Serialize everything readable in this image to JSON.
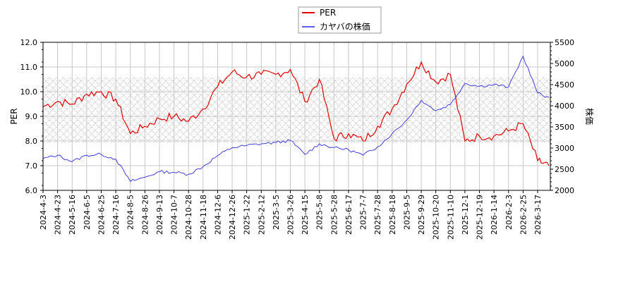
{
  "chart_data": {
    "type": "line",
    "title": "",
    "xlabel": "",
    "ylabel_left": "PER",
    "ylabel_right": "株価",
    "ylim_left": [
      6.0,
      12.0
    ],
    "ylim_right": [
      2000,
      5500
    ],
    "yticks_left": [
      "6.0",
      "7.0",
      "8.0",
      "9.0",
      "10.0",
      "11.0",
      "12.0"
    ],
    "yticks_right": [
      "2000",
      "2500",
      "3000",
      "3500",
      "4000",
      "4500",
      "5000",
      "5500"
    ],
    "grid": true,
    "legend_position": "top-center",
    "shaded_band": {
      "axis": "left",
      "from": 7.9,
      "to": 10.57,
      "pattern": "crosshatch"
    },
    "categories": [
      "2024-4-3",
      "2024-4-23",
      "2024-5-16",
      "2024-6-5",
      "2024-6-25",
      "2024-7-16",
      "2024-8-5",
      "2024-8-26",
      "2024-9-13",
      "2024-10-7",
      "2024-10-28",
      "2024-11-18",
      "2024-12-6",
      "2024-12-26",
      "2025-1-22",
      "2025-2-12",
      "2025-3-5",
      "2025-3-26",
      "2025-4-15",
      "2025-5-8",
      "2025-5-28",
      "2025-6-17",
      "2025-7-7",
      "2025-7-28",
      "2025-8-18",
      "2025-9-5",
      "2025-9-29",
      "2025-10-20",
      "2025-11-10",
      "2025-12-1",
      "2025-12-19",
      "2026-1-14",
      "2026-2-3",
      "2026-2-25",
      "2026-3-17"
    ],
    "series": [
      {
        "name": "PER",
        "axis": "left",
        "color": "#e00000",
        "values": [
          9.4,
          9.6,
          9.5,
          9.9,
          10.0,
          9.7,
          8.3,
          8.6,
          8.9,
          9.0,
          8.8,
          9.3,
          10.2,
          10.8,
          10.6,
          10.7,
          10.7,
          10.9,
          9.6,
          10.5,
          8.1,
          8.3,
          8.0,
          8.6,
          9.3,
          10.3,
          11.2,
          10.4,
          10.7,
          8.0,
          8.2,
          8.2,
          8.4,
          8.7,
          7.2
        ],
        "extra_points_end": 7.0
      },
      {
        "name": "カヤバの株価",
        "axis": "right",
        "color": "#4040e0",
        "values": [
          2750,
          2830,
          2680,
          2830,
          2850,
          2740,
          2210,
          2310,
          2440,
          2430,
          2380,
          2560,
          2820,
          3010,
          3060,
          3100,
          3130,
          3180,
          2850,
          3100,
          3010,
          2960,
          2830,
          3030,
          3340,
          3660,
          4130,
          3880,
          4030,
          4530,
          4460,
          4500,
          4440,
          5170,
          4300
        ]
      }
    ]
  },
  "legend": {
    "items": [
      {
        "label": "PER",
        "color": "#e00000"
      },
      {
        "label": "カヤバの株価",
        "color": "#4040e0"
      }
    ]
  }
}
